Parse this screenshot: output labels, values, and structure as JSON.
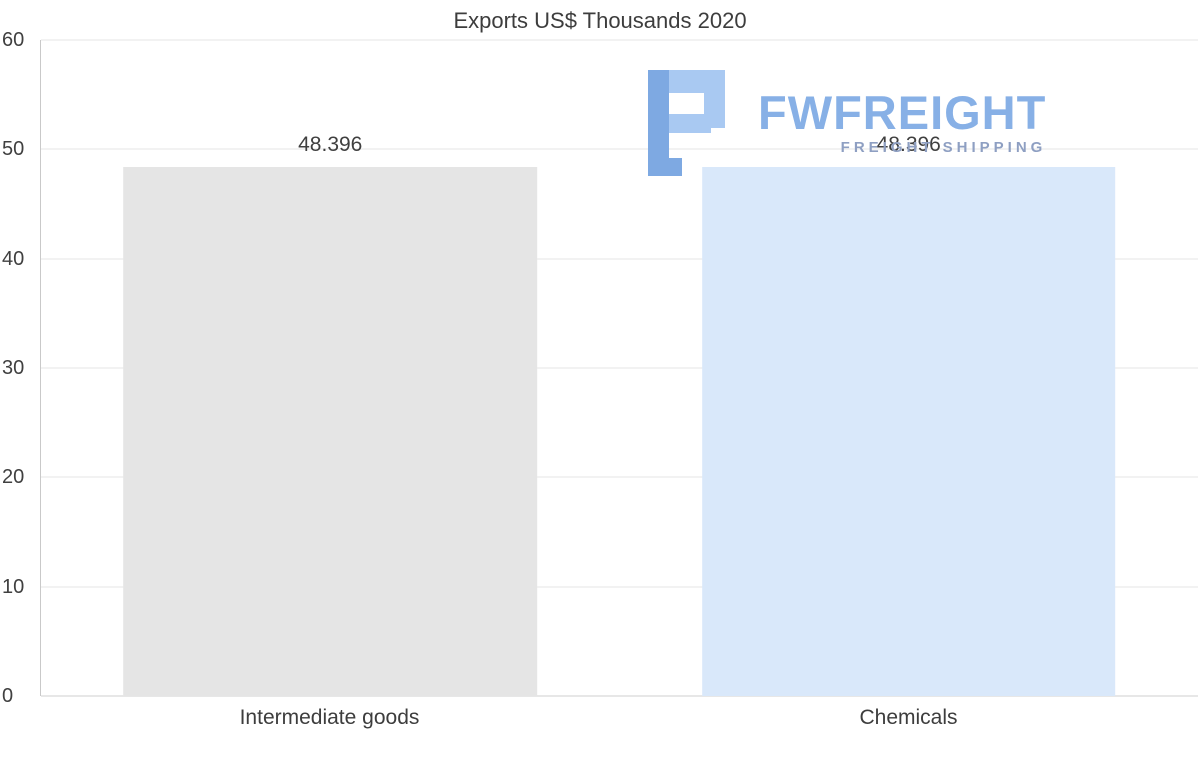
{
  "title": "Exports US$ Thousands 2020",
  "watermark": {
    "brand": "FWFREIGHT",
    "tagline": "FREIGHT SHIPPING",
    "brand_color": "#87b0e6",
    "tagline_color": "#8e9fc2",
    "icon_color_dark": "#7ea9e2",
    "icon_color_light": "#a9c9f2"
  },
  "chart_data": {
    "type": "bar",
    "title": "Exports US$ Thousands 2020",
    "categories": [
      "Intermediate goods",
      "Chemicals"
    ],
    "values": [
      48.396,
      48.396
    ],
    "value_labels": [
      "48.396",
      "48.396"
    ],
    "bar_colors": [
      "#e5e5e5",
      "#d9e8fa"
    ],
    "xlabel": "",
    "ylabel": "",
    "ylim": [
      0,
      60
    ],
    "yticks": [
      0,
      10,
      20,
      30,
      40,
      50,
      60
    ],
    "grid": true,
    "legend": "none"
  }
}
